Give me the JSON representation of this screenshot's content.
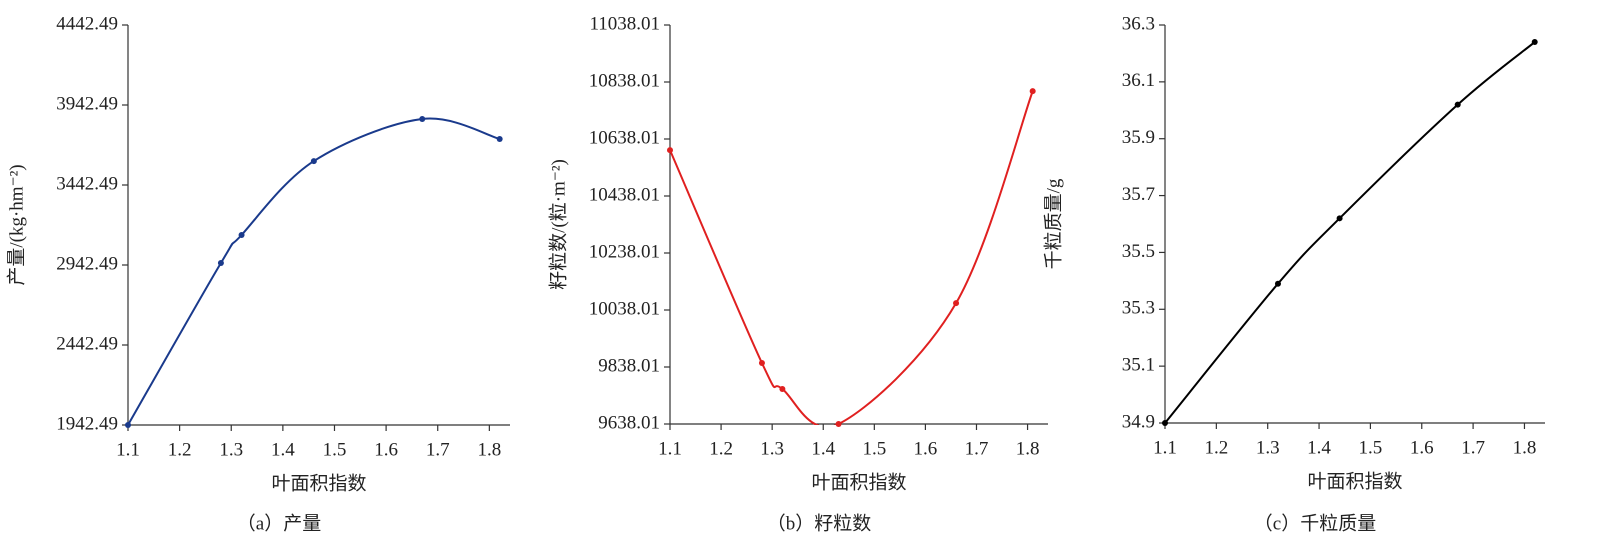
{
  "chart_data": [
    {
      "type": "line",
      "caption": "（a）产量",
      "xlabel": "叶面积指数",
      "ylabel": "产量/(kg·hm⁻²)",
      "x": [
        1.1,
        1.28,
        1.32,
        1.46,
        1.67,
        1.82
      ],
      "series": [
        {
          "color": "#1a3a8c",
          "values": [
            1942.49,
            2955,
            3130,
            3592,
            3855,
            3730
          ]
        }
      ],
      "xlim": [
        1.1,
        1.84
      ],
      "xticks": [
        1.1,
        1.2,
        1.3,
        1.4,
        1.5,
        1.6,
        1.7,
        1.8
      ],
      "ylim": [
        1942.49,
        4442.49
      ],
      "yticks": [
        1942.49,
        2442.49,
        2942.49,
        3442.49,
        3942.49,
        4442.49
      ]
    },
    {
      "type": "line",
      "caption": "（b）籽粒数",
      "xlabel": "叶面积指数",
      "ylabel": "籽粒数/(粒·m⁻²)",
      "x": [
        1.1,
        1.28,
        1.32,
        1.43,
        1.66,
        1.81
      ],
      "series": [
        {
          "color": "#e02020",
          "values": [
            10599,
            9852,
            9761,
            9638.01,
            10062,
            10806
          ]
        }
      ],
      "xlim": [
        1.1,
        1.84
      ],
      "xticks": [
        1.1,
        1.2,
        1.3,
        1.4,
        1.5,
        1.6,
        1.7,
        1.8
      ],
      "ylim": [
        9638.01,
        11038.01
      ],
      "yticks": [
        9638.01,
        9838.01,
        10038.01,
        10238.01,
        10438.01,
        10638.01,
        10838.01,
        11038.01
      ]
    },
    {
      "type": "line",
      "caption": "（c）千粒质量",
      "xlabel": "叶面积指数",
      "ylabel": "千粒质量/g",
      "x": [
        1.1,
        1.32,
        1.44,
        1.67,
        1.82
      ],
      "series": [
        {
          "color": "#000000",
          "values": [
            34.9,
            35.39,
            35.62,
            36.02,
            36.24
          ]
        }
      ],
      "xlim": [
        1.1,
        1.84
      ],
      "xticks": [
        1.1,
        1.2,
        1.3,
        1.4,
        1.5,
        1.6,
        1.7,
        1.8
      ],
      "ylim": [
        34.9,
        36.3
      ],
      "yticks": [
        34.9,
        35.1,
        35.3,
        35.5,
        35.7,
        35.9,
        36.1,
        36.3
      ]
    }
  ]
}
